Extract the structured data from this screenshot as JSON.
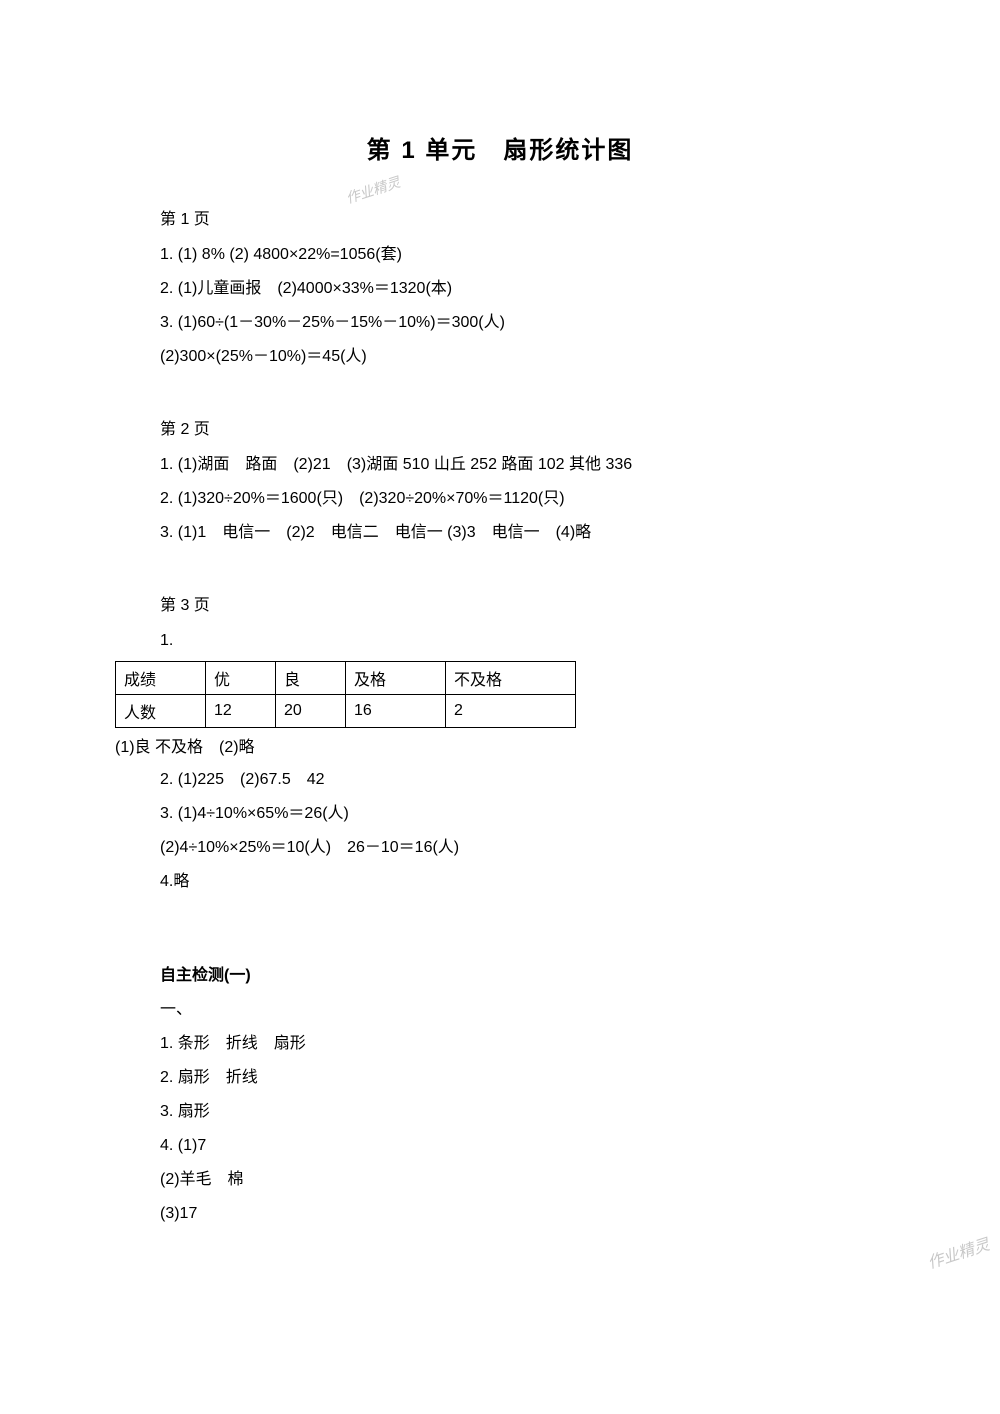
{
  "title": "第 1 单元　扇形统计图",
  "watermark1": "作业精灵",
  "watermark2": "作业精灵",
  "page1": {
    "heading": "第 1 页",
    "line1": "1. (1) 8%  (2) 4800×22%=1056(套)",
    "line2": "2. (1)儿童画报　(2)4000×33%＝1320(本)",
    "line3": "3. (1)60÷(1－30%－25%－15%－10%)＝300(人)",
    "line4": "(2)300×(25%－10%)＝45(人)"
  },
  "page2": {
    "heading": "第 2 页",
    "line1": "1. (1)湖面　路面　(2)21　(3)湖面 510  山丘 252  路面 102  其他 336",
    "line2": "2. (1)320÷20%＝1600(只)　(2)320÷20%×70%＝1120(只)",
    "line3": "3. (1)1　电信一　(2)2　电信二　电信一  (3)3　电信一　(4)略"
  },
  "page3": {
    "heading": "第 3 页",
    "line1": "1.",
    "table": {
      "row1": [
        "成绩",
        "优",
        "良",
        "及格",
        "不及格"
      ],
      "row2": [
        "人数",
        "12",
        "20",
        "16",
        "2"
      ]
    },
    "afterTable": "(1)良 不及格　(2)略",
    "line2": "2. (1)225　(2)67.5　42",
    "line3": "3. (1)4÷10%×65%＝26(人)",
    "line4": "(2)4÷10%×25%＝10(人)　26－10＝16(人)",
    "line5": "4.略"
  },
  "selfTest": {
    "heading": "自主检测(一)",
    "sec1": "一、",
    "line1": "1.  条形　折线　扇形",
    "line2": "2.  扇形　折线",
    "line3": "3.  扇形",
    "line4": "4. (1)7",
    "line5": "(2)羊毛　棉",
    "line6": "(3)17"
  }
}
